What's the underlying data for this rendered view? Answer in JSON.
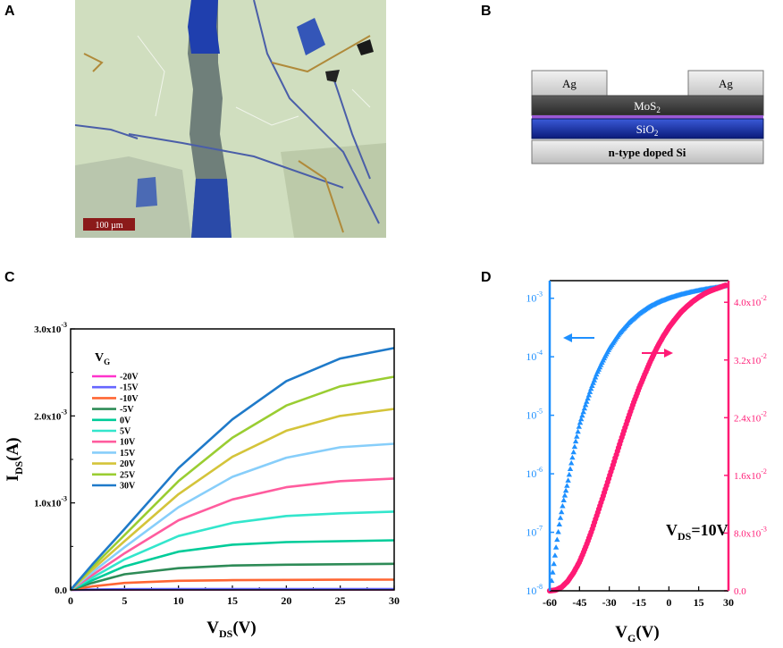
{
  "panels": {
    "a": {
      "label": "A",
      "scale_bar": "100 µm"
    },
    "b": {
      "label": "B",
      "layers": {
        "contact_left": "Ag",
        "contact_right": "Ag",
        "channel": "MoS",
        "channel_sub": "2",
        "oxide": "SiO",
        "oxide_sub": "2",
        "substrate": "n-type doped Si"
      }
    },
    "c": {
      "label": "C"
    },
    "d": {
      "label": "D"
    }
  },
  "colors": {
    "blue_axis": "#1e90ff",
    "pink_axis": "#ff1a75"
  },
  "chart_data": [
    {
      "type": "line",
      "panel": "C",
      "xlabel_main": "V",
      "xlabel_sub": "DS",
      "xlabel_unit": "(V)",
      "ylabel_main": "I",
      "ylabel_sub": "DS",
      "ylabel_unit": "(A)",
      "xlim": [
        0,
        30
      ],
      "ylim": [
        0,
        0.003
      ],
      "x_ticks": [
        "0",
        "5",
        "10",
        "15",
        "20",
        "25",
        "30"
      ],
      "y_ticks": [
        {
          "mant": "0.0",
          "exp": ""
        },
        {
          "mant": "1.0x10",
          "exp": "-3"
        },
        {
          "mant": "2.0x10",
          "exp": "-3"
        },
        {
          "mant": "3.0x10",
          "exp": "-3"
        }
      ],
      "legend_title_main": "V",
      "legend_title_sub": "G",
      "legend_position": "top-left",
      "series": [
        {
          "name": "-20V",
          "color": "#ff33cc",
          "x": [
            0,
            2,
            5,
            10,
            15,
            20,
            25,
            30
          ],
          "y": [
            0,
            2e-06,
            3e-06,
            4e-06,
            4e-06,
            4e-06,
            4e-06,
            4e-06
          ]
        },
        {
          "name": "-15V",
          "color": "#6666ff",
          "x": [
            0,
            2,
            5,
            10,
            15,
            20,
            25,
            30
          ],
          "y": [
            0,
            5e-06,
            8e-06,
            1e-05,
            1e-05,
            1e-05,
            1e-05,
            1e-05
          ]
        },
        {
          "name": "-10V",
          "color": "#ff6633",
          "x": [
            0,
            2,
            5,
            10,
            15,
            20,
            25,
            30
          ],
          "y": [
            0,
            4e-05,
            8e-05,
            0.000105,
            0.000112,
            0.000115,
            0.000117,
            0.000118
          ]
        },
        {
          "name": "-5V",
          "color": "#2e8b57",
          "x": [
            0,
            2,
            5,
            10,
            15,
            20,
            25,
            30
          ],
          "y": [
            0,
            8e-05,
            0.00018,
            0.00025,
            0.00028,
            0.00029,
            0.000295,
            0.0003
          ]
        },
        {
          "name": "0V",
          "color": "#00cc99",
          "x": [
            0,
            2,
            5,
            10,
            15,
            20,
            25,
            30
          ],
          "y": [
            0,
            0.00011,
            0.00027,
            0.00044,
            0.00052,
            0.00055,
            0.00056,
            0.00057
          ]
        },
        {
          "name": "5V",
          "color": "#33e6cc",
          "x": [
            0,
            2,
            5,
            10,
            15,
            20,
            25,
            30
          ],
          "y": [
            0,
            0.00014,
            0.00035,
            0.00062,
            0.00077,
            0.00085,
            0.00088,
            0.0009
          ]
        },
        {
          "name": "10V",
          "color": "#ff5c9e",
          "x": [
            0,
            2,
            5,
            10,
            15,
            20,
            25,
            30
          ],
          "y": [
            0,
            0.00017,
            0.00042,
            0.0008,
            0.00104,
            0.00118,
            0.00125,
            0.00128
          ]
        },
        {
          "name": "15V",
          "color": "#87cefa",
          "x": [
            0,
            2,
            5,
            10,
            15,
            20,
            25,
            30
          ],
          "y": [
            0,
            0.0002,
            0.00049,
            0.00095,
            0.0013,
            0.00152,
            0.00164,
            0.00168
          ]
        },
        {
          "name": "20V",
          "color": "#d4c43a",
          "x": [
            0,
            2,
            5,
            10,
            15,
            20,
            25,
            30
          ],
          "y": [
            0,
            0.00023,
            0.00056,
            0.0011,
            0.00153,
            0.00183,
            0.002,
            0.00208
          ]
        },
        {
          "name": "25V",
          "color": "#9acd32",
          "x": [
            0,
            2,
            5,
            10,
            15,
            20,
            25,
            30
          ],
          "y": [
            0,
            0.00026,
            0.00063,
            0.00125,
            0.00175,
            0.00212,
            0.00234,
            0.00245
          ]
        },
        {
          "name": "30V",
          "color": "#1f7ac9",
          "x": [
            0,
            2,
            5,
            10,
            15,
            20,
            25,
            30
          ],
          "y": [
            0,
            0.00029,
            0.0007,
            0.0014,
            0.00196,
            0.0024,
            0.00266,
            0.00278
          ]
        }
      ]
    },
    {
      "type": "line",
      "panel": "D",
      "xlabel_main": "V",
      "xlabel_sub": "G",
      "xlabel_unit": "(V)",
      "annotation_main": "V",
      "annotation_sub": "DS",
      "annotation_rest": "=10V",
      "xlim": [
        -60,
        30
      ],
      "x_ticks": [
        "-60",
        "-45",
        "-30",
        "-15",
        "0",
        "15",
        "30"
      ],
      "y_left": {
        "scale": "log",
        "lim": [
          1e-08,
          0.002
        ],
        "color": "#1e90ff",
        "ticks": [
          {
            "base": "10",
            "exp": "-8"
          },
          {
            "base": "10",
            "exp": "-7"
          },
          {
            "base": "10",
            "exp": "-6"
          },
          {
            "base": "10",
            "exp": "-5"
          },
          {
            "base": "10",
            "exp": "-4"
          },
          {
            "base": "10",
            "exp": "-3"
          }
        ]
      },
      "y_right": {
        "scale": "linear",
        "lim": [
          0,
          0.043
        ],
        "color": "#ff1a75",
        "ticks": [
          {
            "mant": "0.0",
            "exp": ""
          },
          {
            "mant": "8.0x10",
            "exp": "-3"
          },
          {
            "mant": "1.6x10",
            "exp": "-2"
          },
          {
            "mant": "2.4x10",
            "exp": "-2"
          },
          {
            "mant": "3.2x10",
            "exp": "-2"
          },
          {
            "mant": "4.0x10",
            "exp": "-2"
          }
        ]
      },
      "series": [
        {
          "axis": "left",
          "color": "#1e90ff",
          "marker": "triangle",
          "x": [
            -59,
            -57,
            -55,
            -53,
            -51,
            -49,
            -47,
            -45,
            -42,
            -39,
            -36,
            -33,
            -30,
            -25,
            -20,
            -15,
            -10,
            -5,
            0,
            5,
            10,
            15,
            20,
            25,
            29
          ],
          "y": [
            1.5e-08,
            5e-08,
            1.5e-07,
            3.5e-07,
            7e-07,
            1.6e-06,
            3.5e-06,
            7e-06,
            1.5e-05,
            3e-05,
            5.5e-05,
            9e-05,
            0.00014,
            0.00025,
            0.00039,
            0.00055,
            0.00072,
            0.00088,
            0.00102,
            0.00115,
            0.00127,
            0.00138,
            0.00148,
            0.00157,
            0.00165
          ]
        },
        {
          "axis": "right",
          "color": "#ff1a75",
          "marker": "circle",
          "x": [
            -60,
            -57,
            -54,
            -51,
            -48,
            -45,
            -42,
            -39,
            -36,
            -33,
            -30,
            -27,
            -24,
            -21,
            -18,
            -15,
            -12,
            -9,
            -6,
            -3,
            0,
            3,
            6,
            9,
            12,
            15,
            18,
            21,
            24,
            27,
            29
          ],
          "y": [
            0,
            0.0001,
            0.0005,
            0.0013,
            0.0025,
            0.004,
            0.006,
            0.0082,
            0.0107,
            0.0132,
            0.0158,
            0.0184,
            0.021,
            0.0235,
            0.0259,
            0.0281,
            0.0301,
            0.032,
            0.0337,
            0.0352,
            0.0365,
            0.0376,
            0.0386,
            0.0394,
            0.0401,
            0.0407,
            0.0412,
            0.0416,
            0.0419,
            0.0422,
            0.0424
          ]
        }
      ]
    }
  ]
}
